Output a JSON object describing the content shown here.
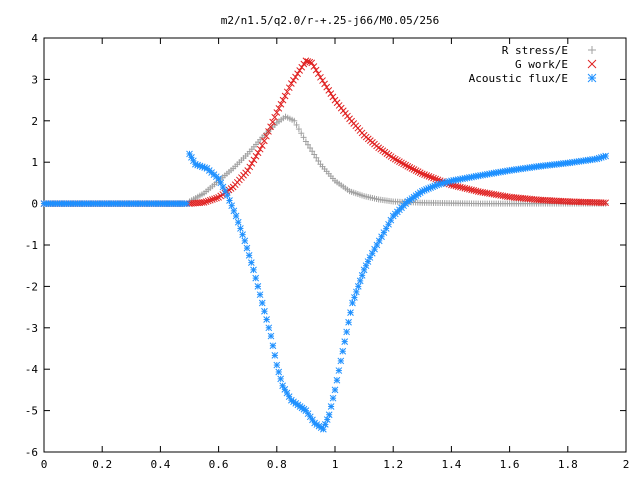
{
  "chart_data": {
    "type": "scatter",
    "title": "m2/n1.5/q2.0/r-+.25-j66/M0.05/256",
    "xlabel": "",
    "ylabel": "",
    "xlim": [
      0,
      2
    ],
    "ylim": [
      -6,
      4
    ],
    "x_ticks": [
      "0",
      "0.2",
      "0.4",
      "0.6",
      "0.8",
      "1",
      "1.2",
      "1.4",
      "1.6",
      "1.8",
      "2"
    ],
    "y_ticks": [
      "4",
      "3",
      "2",
      "1",
      "0",
      "-1",
      "-2",
      "-3",
      "-4",
      "-5",
      "-6"
    ],
    "grid": false,
    "legend_position": "top-right",
    "series": [
      {
        "name": "R stress/E",
        "marker": "plus",
        "color": "#a0a0a0",
        "points": [
          [
            0.0,
            0
          ],
          [
            0.1,
            0
          ],
          [
            0.2,
            0
          ],
          [
            0.3,
            0
          ],
          [
            0.4,
            0
          ],
          [
            0.49,
            0
          ],
          [
            0.5,
            0.05
          ],
          [
            0.55,
            0.25
          ],
          [
            0.6,
            0.55
          ],
          [
            0.65,
            0.85
          ],
          [
            0.7,
            1.2
          ],
          [
            0.75,
            1.6
          ],
          [
            0.8,
            1.95
          ],
          [
            0.83,
            2.1
          ],
          [
            0.86,
            2.0
          ],
          [
            0.9,
            1.5
          ],
          [
            0.95,
            0.95
          ],
          [
            1.0,
            0.55
          ],
          [
            1.05,
            0.3
          ],
          [
            1.1,
            0.18
          ],
          [
            1.15,
            0.1
          ],
          [
            1.2,
            0.05
          ],
          [
            1.3,
            0.02
          ],
          [
            1.4,
            0.01
          ],
          [
            1.5,
            0.0
          ],
          [
            1.6,
            0.0
          ],
          [
            1.7,
            0.0
          ],
          [
            1.8,
            0.0
          ],
          [
            1.93,
            0.0
          ]
        ]
      },
      {
        "name": "G work/E",
        "marker": "cross",
        "color": "#e02020",
        "points": [
          [
            0.0,
            0
          ],
          [
            0.1,
            0
          ],
          [
            0.2,
            0
          ],
          [
            0.3,
            0
          ],
          [
            0.4,
            0
          ],
          [
            0.49,
            0
          ],
          [
            0.5,
            0.0
          ],
          [
            0.55,
            0.03
          ],
          [
            0.6,
            0.15
          ],
          [
            0.65,
            0.4
          ],
          [
            0.7,
            0.8
          ],
          [
            0.75,
            1.4
          ],
          [
            0.8,
            2.2
          ],
          [
            0.85,
            2.9
          ],
          [
            0.9,
            3.45
          ],
          [
            0.92,
            3.4
          ],
          [
            0.95,
            3.05
          ],
          [
            1.0,
            2.5
          ],
          [
            1.05,
            2.05
          ],
          [
            1.1,
            1.65
          ],
          [
            1.15,
            1.35
          ],
          [
            1.2,
            1.1
          ],
          [
            1.25,
            0.9
          ],
          [
            1.3,
            0.72
          ],
          [
            1.4,
            0.45
          ],
          [
            1.5,
            0.28
          ],
          [
            1.6,
            0.16
          ],
          [
            1.7,
            0.09
          ],
          [
            1.8,
            0.05
          ],
          [
            1.93,
            0.02
          ]
        ]
      },
      {
        "name": "Acoustic flux/E",
        "marker": "star",
        "color": "#1e90ff",
        "points": [
          [
            0.0,
            0
          ],
          [
            0.1,
            0
          ],
          [
            0.2,
            0
          ],
          [
            0.3,
            0
          ],
          [
            0.4,
            0
          ],
          [
            0.49,
            0
          ],
          [
            0.5,
            1.2
          ],
          [
            0.52,
            0.95
          ],
          [
            0.56,
            0.85
          ],
          [
            0.6,
            0.6
          ],
          [
            0.63,
            0.2
          ],
          [
            0.66,
            -0.3
          ],
          [
            0.69,
            -0.9
          ],
          [
            0.72,
            -1.6
          ],
          [
            0.75,
            -2.4
          ],
          [
            0.78,
            -3.2
          ],
          [
            0.8,
            -3.9
          ],
          [
            0.82,
            -4.4
          ],
          [
            0.85,
            -4.75
          ],
          [
            0.88,
            -4.9
          ],
          [
            0.9,
            -5.0
          ],
          [
            0.93,
            -5.3
          ],
          [
            0.96,
            -5.45
          ],
          [
            0.98,
            -5.1
          ],
          [
            1.0,
            -4.5
          ],
          [
            1.02,
            -3.8
          ],
          [
            1.04,
            -3.1
          ],
          [
            1.06,
            -2.4
          ],
          [
            1.08,
            -2.0
          ],
          [
            1.1,
            -1.6
          ],
          [
            1.12,
            -1.3
          ],
          [
            1.16,
            -0.8
          ],
          [
            1.2,
            -0.3
          ],
          [
            1.25,
            0.05
          ],
          [
            1.3,
            0.3
          ],
          [
            1.35,
            0.45
          ],
          [
            1.4,
            0.55
          ],
          [
            1.5,
            0.68
          ],
          [
            1.6,
            0.8
          ],
          [
            1.7,
            0.9
          ],
          [
            1.8,
            0.98
          ],
          [
            1.9,
            1.08
          ],
          [
            1.93,
            1.15
          ]
        ]
      }
    ]
  }
}
